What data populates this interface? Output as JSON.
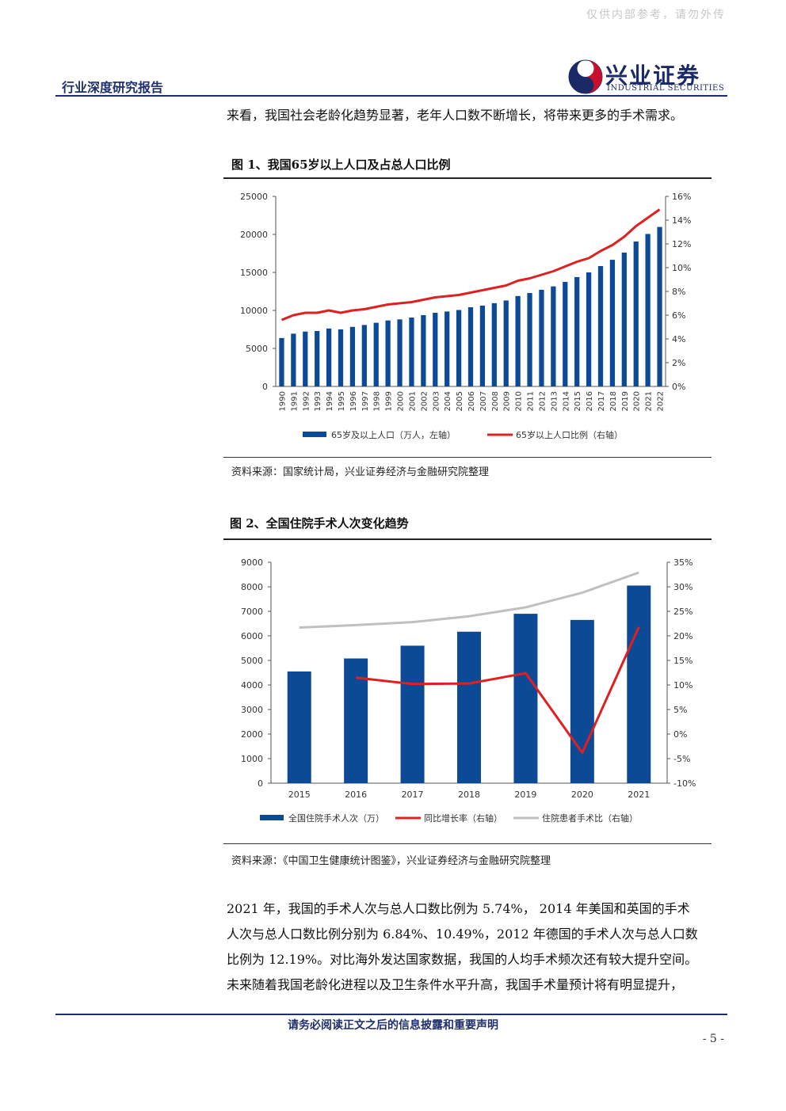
{
  "watermark": "仅供内部参考，请勿外传",
  "header": {
    "report_type": "行业深度研究报告",
    "logo_cn": "兴业证券",
    "logo_en": "INDUSTRIAL SECURITIES"
  },
  "intro_text": "来看，我国社会老龄化趋势显著，老年人口数不断增长，将带来更多的手术需求。",
  "figure1": {
    "title": "图 1、我国65岁以上人口及占总人口比例",
    "source": "资料来源：国家统计局，兴业证券经济与金融研究院整理"
  },
  "figure2": {
    "title": "图 2、全国住院手术人次变化趋势",
    "source": "资料来源：《中国卫生健康统计图鉴》，兴业证券经济与金融研究院整理"
  },
  "chart_data": [
    {
      "type": "bar",
      "categories": [
        "1990",
        "1991",
        "1992",
        "1993",
        "1994",
        "1995",
        "1996",
        "1997",
        "1998",
        "1999",
        "2000",
        "2001",
        "2002",
        "2003",
        "2004",
        "2005",
        "2006",
        "2007",
        "2008",
        "2009",
        "2010",
        "2011",
        "2012",
        "2013",
        "2014",
        "2015",
        "2016",
        "2017",
        "2018",
        "2019",
        "2020",
        "2021",
        "2022"
      ],
      "series": [
        {
          "name": "65岁及以上人口（万人，左轴）",
          "type": "bar",
          "axis": "left",
          "color": "#0c4a96",
          "values": [
            6368,
            6938,
            7218,
            7289,
            7622,
            7510,
            7833,
            8085,
            8375,
            8679,
            8821,
            9062,
            9377,
            9692,
            9857,
            10055,
            10419,
            10636,
            10956,
            11307,
            11894,
            12288,
            12714,
            13161,
            13755,
            14386,
            15003,
            15831,
            16658,
            17603,
            19064,
            20056,
            20978
          ]
        },
        {
          "name": "65岁以上人口比例（右轴）",
          "type": "line",
          "axis": "right",
          "color": "#e02020",
          "values": [
            5.6,
            6.0,
            6.2,
            6.2,
            6.4,
            6.2,
            6.4,
            6.5,
            6.7,
            6.9,
            7.0,
            7.1,
            7.3,
            7.5,
            7.6,
            7.7,
            7.9,
            8.1,
            8.3,
            8.5,
            8.9,
            9.1,
            9.4,
            9.7,
            10.1,
            10.5,
            10.8,
            11.4,
            11.9,
            12.6,
            13.5,
            14.2,
            14.9
          ]
        }
      ],
      "y_left": {
        "ticks": [
          0,
          5000,
          10000,
          15000,
          20000,
          25000
        ],
        "tick_labels": [
          "0",
          "5000",
          "10000",
          "15000",
          "20000",
          "25000"
        ],
        "lim": [
          0,
          25000
        ]
      },
      "y_right": {
        "ticks": [
          0,
          2,
          4,
          6,
          8,
          10,
          12,
          14,
          16
        ],
        "tick_labels": [
          "0%",
          "2%",
          "4%",
          "6%",
          "8%",
          "10%",
          "12%",
          "14%",
          "16%"
        ],
        "lim": [
          0,
          16
        ]
      },
      "legend": "bottom"
    },
    {
      "type": "bar",
      "categories": [
        "2015",
        "2016",
        "2017",
        "2018",
        "2019",
        "2020",
        "2021"
      ],
      "series": [
        {
          "name": "全国住院手术人次（万）",
          "type": "bar",
          "axis": "left",
          "color": "#0c4a96",
          "values": [
            4550,
            5080,
            5600,
            6170,
            6900,
            6650,
            8050
          ]
        },
        {
          "name": "同比增长率（右轴）",
          "type": "line",
          "axis": "right",
          "color": "#e02020",
          "values": [
            null,
            11.5,
            10.2,
            10.3,
            12.4,
            -3.8,
            21.8
          ]
        },
        {
          "name": "住院患者手术比（右轴）",
          "type": "line",
          "axis": "right",
          "color": "#c0c0c0",
          "values": [
            21.7,
            22.2,
            22.8,
            24.0,
            25.8,
            28.8,
            32.9
          ]
        }
      ],
      "y_left": {
        "ticks": [
          0,
          1000,
          2000,
          3000,
          4000,
          5000,
          6000,
          7000,
          8000,
          9000
        ],
        "tick_labels": [
          "0",
          "1000",
          "2000",
          "3000",
          "4000",
          "5000",
          "6000",
          "7000",
          "8000",
          "9000"
        ],
        "lim": [
          0,
          9000
        ]
      },
      "y_right": {
        "ticks": [
          -10,
          -5,
          0,
          5,
          10,
          15,
          20,
          25,
          30,
          35
        ],
        "tick_labels": [
          "-10%",
          "-5%",
          "0%",
          "5%",
          "10%",
          "15%",
          "20%",
          "25%",
          "30%",
          "35%"
        ],
        "lim": [
          -10,
          35
        ]
      },
      "legend": "bottom"
    }
  ],
  "paragraph": [
    "2021 年，我国的手术人次与总人口数比例为 5.74%， 2014 年美国和英国的手术",
    "人次与总人口数比例分别为 6.84%、10.49%，2012 年德国的手术人次与总人口数",
    "比例为 12.19%。对比海外发达国家数据，我国的人均手术频次还有较大提升空间。",
    "未来随着我国老龄化进程以及卫生条件水平升高，我国手术量预计将有明显提升，"
  ],
  "footer": {
    "disclaimer": "请务必阅读正文之后的信息披露和重要声明",
    "page": "- 5 -"
  },
  "colors": {
    "brand_navy": "#1f2f6b",
    "bar_blue": "#0c4a96",
    "line_red": "#e02020",
    "line_gray": "#c0c0c0"
  }
}
